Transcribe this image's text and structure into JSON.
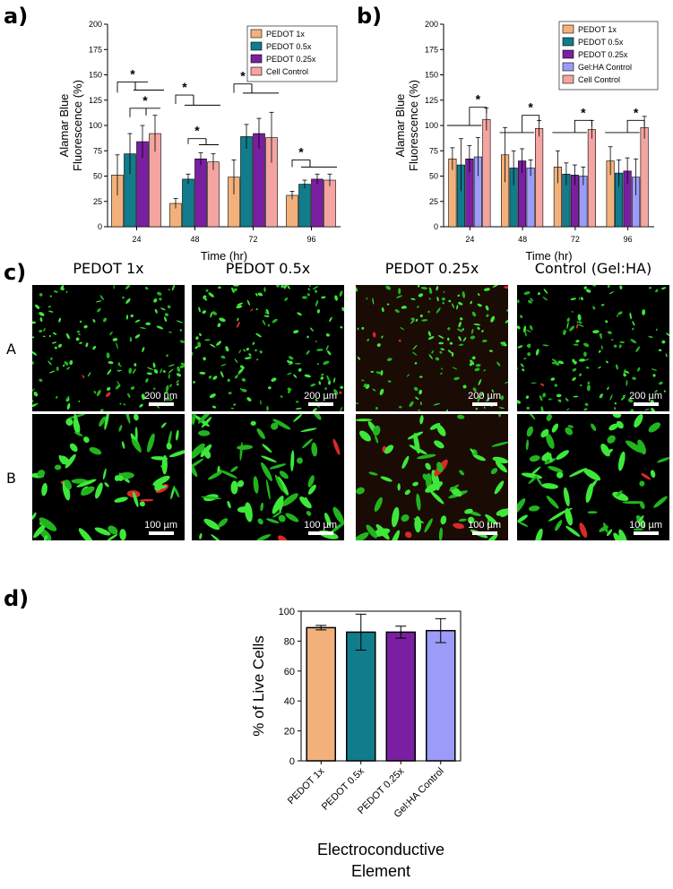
{
  "panels": {
    "a": "a)",
    "b": "b)",
    "c": "c)",
    "d": "d)"
  },
  "colors": {
    "pedot1x": "#F2B17B",
    "pedot05x": "#107C8C",
    "pedot025x": "#7A1FA2",
    "gelha": "#9C9CF8",
    "cell": "#F5A5A1"
  },
  "chart_data": [
    {
      "id": "a",
      "type": "bar",
      "ylabel_line1": "Alamar Blue",
      "ylabel_line2": "Fluorescence  (%)",
      "xlabel": "Time (hr)",
      "categories": [
        "24",
        "48",
        "72",
        "96"
      ],
      "yticks": [
        "0",
        "25",
        "50",
        "75",
        "100",
        "125",
        "150",
        "175",
        "200"
      ],
      "ylim": [
        0,
        200
      ],
      "legend_position": "top-right",
      "series": [
        {
          "name": "PEDOT 1x",
          "color": "#F2B17B",
          "values": [
            51,
            23,
            49,
            31
          ],
          "errors": [
            20,
            5,
            17,
            4
          ]
        },
        {
          "name": "PEDOT 0.5x",
          "color": "#107C8C",
          "values": [
            72,
            47,
            89,
            42
          ],
          "errors": [
            20,
            5,
            12,
            4
          ]
        },
        {
          "name": "PEDOT 0.25x",
          "color": "#7A1FA2",
          "values": [
            84,
            67,
            92,
            47
          ],
          "errors": [
            16,
            6,
            15,
            5
          ]
        },
        {
          "name": "Cell Control",
          "color": "#F5A5A1",
          "values": [
            92,
            64,
            88,
            46
          ],
          "errors": [
            18,
            8,
            25,
            6
          ]
        }
      ],
      "significance": [
        "*",
        "*",
        "*",
        "*",
        "*",
        "*"
      ]
    },
    {
      "id": "b",
      "type": "bar",
      "ylabel_line1": "Alamar Blue",
      "ylabel_line2": "Fluorescence  (%)",
      "xlabel": "Time (hr)",
      "categories": [
        "24",
        "48",
        "72",
        "96"
      ],
      "yticks": [
        "0",
        "25",
        "50",
        "75",
        "100",
        "125",
        "150",
        "175",
        "200"
      ],
      "ylim": [
        0,
        200
      ],
      "legend_position": "top-right",
      "series": [
        {
          "name": "PEDOT 1x",
          "color": "#F2B17B",
          "values": [
            67,
            71,
            59,
            65
          ],
          "errors": [
            11,
            27,
            16,
            14
          ]
        },
        {
          "name": "PEDOT 0.5x",
          "color": "#107C8C",
          "values": [
            61,
            58,
            52,
            53
          ],
          "errors": [
            26,
            17,
            11,
            13
          ]
        },
        {
          "name": "PEDOT 0.25x",
          "color": "#7A1FA2",
          "values": [
            67,
            65,
            51,
            55
          ],
          "errors": [
            13,
            12,
            10,
            13
          ]
        },
        {
          "name": "Gel:HA Control",
          "color": "#9C9CF8",
          "values": [
            69,
            58,
            50,
            49
          ],
          "errors": [
            19,
            8,
            9,
            18
          ]
        },
        {
          "name": "Cell Control",
          "color": "#F5A5A1",
          "values": [
            106,
            97,
            96,
            98
          ],
          "errors": [
            11,
            8,
            9,
            11
          ]
        }
      ],
      "significance": [
        "*",
        "*",
        "*",
        "*"
      ]
    },
    {
      "id": "d",
      "type": "bar",
      "ylabel": "% of Live Cells",
      "xlabel_line1": "Electroconductive",
      "xlabel_line2": "Element",
      "categories": [
        "PEDOT 1x",
        "PEDOT 0.5x",
        "PEDOT 0.25x",
        "Gel:HA Control"
      ],
      "yticks": [
        "0",
        "20",
        "40",
        "60",
        "80",
        "100"
      ],
      "ylim": [
        0,
        100
      ],
      "values": [
        89,
        86,
        86,
        87
      ],
      "errors": [
        1.5,
        12,
        4,
        8
      ],
      "colors": [
        "#F2B17B",
        "#107C8C",
        "#7A1FA2",
        "#9C9CF8"
      ]
    }
  ],
  "micrographs": {
    "columns": [
      "PEDOT 1x",
      "PEDOT 0.5x",
      "PEDOT 0.25x",
      "Control (Gel:HA)"
    ],
    "rows": [
      "A",
      "B"
    ],
    "scale_A": "200 µm",
    "scale_B": "100 µm"
  }
}
